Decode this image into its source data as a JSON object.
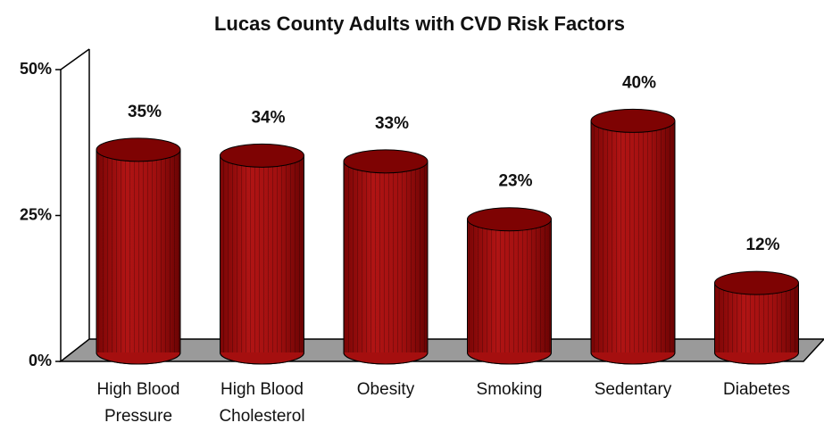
{
  "chart_data": {
    "type": "bar",
    "title": "Lucas County Adults with CVD Risk Factors",
    "categories": [
      "High Blood Pressure",
      "High Blood Cholesterol",
      "Obesity",
      "Smoking",
      "Sedentary",
      "Diabetes"
    ],
    "values": [
      35,
      34,
      33,
      23,
      40,
      12
    ],
    "value_labels": [
      "35%",
      "34%",
      "33%",
      "23%",
      "40%",
      "12%"
    ],
    "color": "#a50f0f",
    "ylim": [
      0,
      50
    ],
    "yticks": [
      {
        "value": 0,
        "label": "0%"
      },
      {
        "value": 25,
        "label": "25%"
      },
      {
        "value": 50,
        "label": "50%"
      }
    ]
  }
}
